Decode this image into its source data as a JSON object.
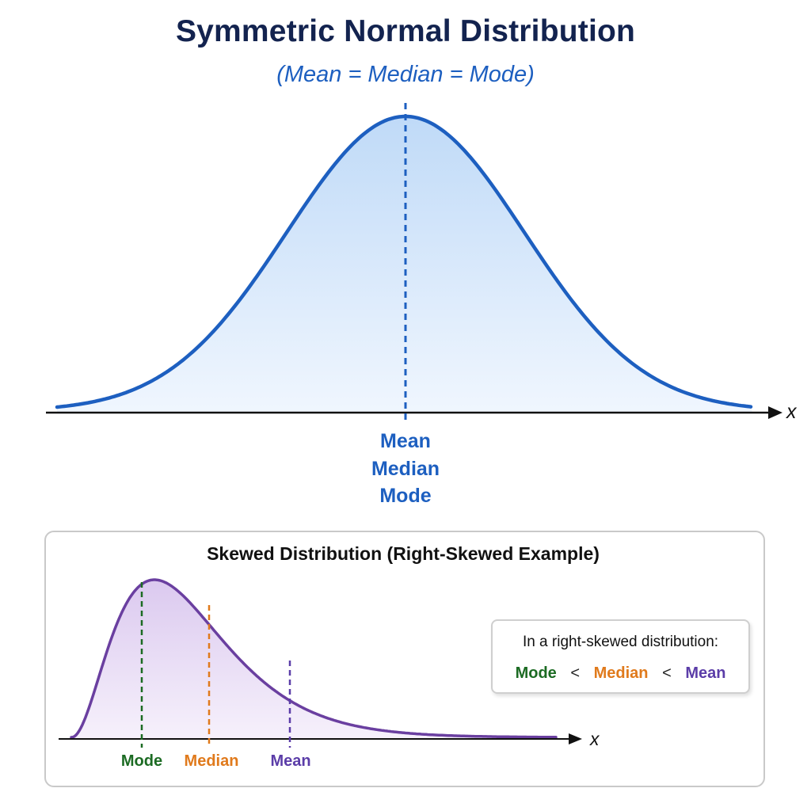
{
  "title": "Symmetric Normal Distribution",
  "subtitle": "(Mean = Median = Mode)",
  "top_chart": {
    "x_axis_label": "x",
    "center_labels": [
      "Mean",
      "Median",
      "Mode"
    ],
    "colors": {
      "curve": "#1d5fc0",
      "fill": "#cfe3fb",
      "axis": "#111111"
    }
  },
  "skewed": {
    "title": "Skewed Distribution (Right-Skewed Example)",
    "x_axis_label": "x",
    "labels": {
      "mode": "Mode",
      "median": "Median",
      "mean": "Mean"
    },
    "callout": {
      "text": "In a right-skewed distribution:",
      "mode": "Mode",
      "lt1": "<",
      "median": "Median",
      "lt2": "<",
      "mean": "Mean"
    },
    "colors": {
      "curve": "#6a3fa0",
      "fill": "#e3d6f1",
      "mode": "#1c6b23",
      "median": "#e07a1c",
      "mean": "#5b3da8"
    }
  }
}
